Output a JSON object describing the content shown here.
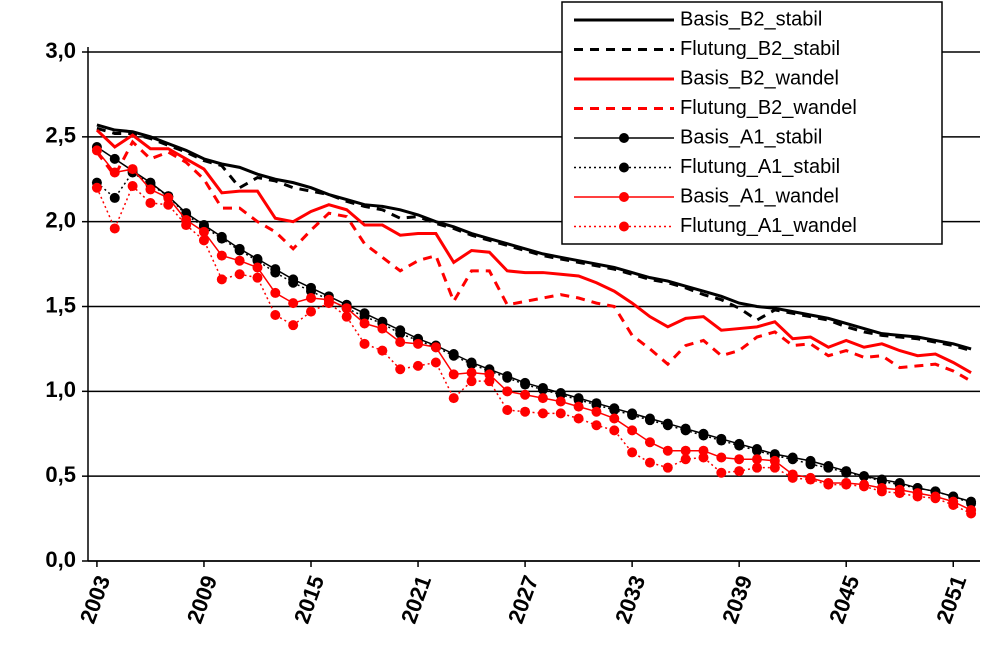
{
  "chart_data": {
    "type": "line",
    "x": [
      2003,
      2004,
      2005,
      2006,
      2007,
      2008,
      2009,
      2010,
      2011,
      2012,
      2013,
      2014,
      2015,
      2016,
      2017,
      2018,
      2019,
      2020,
      2021,
      2022,
      2023,
      2024,
      2025,
      2026,
      2027,
      2028,
      2029,
      2030,
      2031,
      2032,
      2033,
      2034,
      2035,
      2036,
      2037,
      2038,
      2039,
      2040,
      2041,
      2042,
      2043,
      2044,
      2045,
      2046,
      2047,
      2048,
      2049,
      2050,
      2051,
      2052
    ],
    "xlim": [
      2002.5,
      2052.5
    ],
    "xticks": [
      2003,
      2009,
      2015,
      2021,
      2027,
      2033,
      2039,
      2045,
      2051
    ],
    "ylim": [
      0,
      3
    ],
    "yticks": [
      {
        "value": 0,
        "label": "0,0"
      },
      {
        "value": 0.5,
        "label": "0,5"
      },
      {
        "value": 1,
        "label": "1,0"
      },
      {
        "value": 1.5,
        "label": "1,5"
      },
      {
        "value": 2,
        "label": "2,0"
      },
      {
        "value": 2.5,
        "label": "2,5"
      },
      {
        "value": 3,
        "label": "3,0"
      }
    ],
    "grid": true,
    "legend": "upper right",
    "series": [
      {
        "name": "Basis_B2_stabil",
        "color": "#000000",
        "line": "solid",
        "marker": false,
        "values": [
          2.57,
          2.54,
          2.53,
          2.5,
          2.46,
          2.42,
          2.37,
          2.34,
          2.32,
          2.28,
          2.25,
          2.23,
          2.2,
          2.16,
          2.13,
          2.1,
          2.09,
          2.07,
          2.04,
          2.0,
          1.97,
          1.93,
          1.9,
          1.87,
          1.84,
          1.81,
          1.79,
          1.77,
          1.75,
          1.73,
          1.7,
          1.67,
          1.65,
          1.62,
          1.59,
          1.56,
          1.52,
          1.5,
          1.49,
          1.47,
          1.45,
          1.43,
          1.4,
          1.37,
          1.34,
          1.33,
          1.32,
          1.3,
          1.28,
          1.25
        ]
      },
      {
        "name": "Flutung_B2_stabil",
        "color": "#000000",
        "line": "dashed",
        "marker": false,
        "values": [
          2.55,
          2.52,
          2.52,
          2.49,
          2.45,
          2.41,
          2.36,
          2.33,
          2.2,
          2.26,
          2.24,
          2.2,
          2.18,
          2.16,
          2.12,
          2.09,
          2.07,
          2.02,
          2.03,
          1.99,
          1.96,
          1.92,
          1.89,
          1.86,
          1.83,
          1.8,
          1.78,
          1.76,
          1.74,
          1.72,
          1.69,
          1.66,
          1.64,
          1.61,
          1.57,
          1.54,
          1.49,
          1.42,
          1.48,
          1.46,
          1.44,
          1.42,
          1.38,
          1.35,
          1.33,
          1.32,
          1.31,
          1.29,
          1.27,
          1.24
        ]
      },
      {
        "name": "Basis_B2_wandel",
        "color": "#ff0000",
        "line": "solid",
        "marker": false,
        "values": [
          2.54,
          2.44,
          2.51,
          2.43,
          2.43,
          2.37,
          2.31,
          2.17,
          2.18,
          2.18,
          2.02,
          2.0,
          2.06,
          2.1,
          2.07,
          1.98,
          1.98,
          1.92,
          1.93,
          1.93,
          1.76,
          1.83,
          1.82,
          1.71,
          1.7,
          1.7,
          1.69,
          1.68,
          1.64,
          1.59,
          1.52,
          1.44,
          1.38,
          1.43,
          1.44,
          1.36,
          1.37,
          1.38,
          1.41,
          1.31,
          1.32,
          1.26,
          1.3,
          1.26,
          1.28,
          1.24,
          1.21,
          1.22,
          1.17,
          1.11
        ]
      },
      {
        "name": "Flutung_B2_wandel",
        "color": "#ff0000",
        "line": "dashed",
        "marker": false,
        "values": [
          2.41,
          2.27,
          2.47,
          2.37,
          2.41,
          2.35,
          2.25,
          2.08,
          2.08,
          2.0,
          1.94,
          1.84,
          1.95,
          2.05,
          2.03,
          1.87,
          1.79,
          1.71,
          1.77,
          1.8,
          1.53,
          1.71,
          1.71,
          1.51,
          1.53,
          1.55,
          1.57,
          1.55,
          1.52,
          1.5,
          1.33,
          1.25,
          1.16,
          1.27,
          1.3,
          1.21,
          1.24,
          1.32,
          1.35,
          1.27,
          1.28,
          1.21,
          1.24,
          1.2,
          1.21,
          1.14,
          1.15,
          1.16,
          1.12,
          1.06
        ]
      },
      {
        "name": "Basis_A1_stabil",
        "color": "#000000",
        "line": "solid",
        "marker": true,
        "values": [
          2.44,
          2.37,
          2.3,
          2.23,
          2.15,
          2.05,
          1.98,
          1.91,
          1.84,
          1.78,
          1.72,
          1.66,
          1.61,
          1.56,
          1.51,
          1.46,
          1.41,
          1.36,
          1.31,
          1.27,
          1.22,
          1.17,
          1.13,
          1.09,
          1.05,
          1.02,
          0.99,
          0.96,
          0.93,
          0.9,
          0.87,
          0.84,
          0.81,
          0.78,
          0.75,
          0.72,
          0.69,
          0.66,
          0.63,
          0.61,
          0.59,
          0.56,
          0.53,
          0.5,
          0.48,
          0.46,
          0.43,
          0.41,
          0.38,
          0.35
        ]
      },
      {
        "name": "Flutung_A1_stabil",
        "color": "#000000",
        "line": "dotted",
        "marker": true,
        "values": [
          2.23,
          2.14,
          2.29,
          2.22,
          2.15,
          2.04,
          1.97,
          1.9,
          1.83,
          1.77,
          1.7,
          1.64,
          1.59,
          1.54,
          1.49,
          1.44,
          1.4,
          1.34,
          1.3,
          1.26,
          1.21,
          1.16,
          1.12,
          1.08,
          1.04,
          1.01,
          0.98,
          0.95,
          0.92,
          0.89,
          0.86,
          0.83,
          0.8,
          0.77,
          0.74,
          0.71,
          0.68,
          0.65,
          0.62,
          0.6,
          0.57,
          0.55,
          0.52,
          0.5,
          0.47,
          0.45,
          0.43,
          0.41,
          0.38,
          0.34
        ]
      },
      {
        "name": "Basis_A1_wandel",
        "color": "#ff0000",
        "line": "solid",
        "marker": true,
        "values": [
          2.42,
          2.29,
          2.31,
          2.19,
          2.14,
          2.01,
          1.94,
          1.8,
          1.77,
          1.73,
          1.58,
          1.52,
          1.55,
          1.54,
          1.49,
          1.4,
          1.37,
          1.29,
          1.28,
          1.26,
          1.1,
          1.11,
          1.1,
          1.0,
          0.98,
          0.96,
          0.94,
          0.91,
          0.88,
          0.84,
          0.77,
          0.7,
          0.65,
          0.65,
          0.65,
          0.61,
          0.6,
          0.6,
          0.59,
          0.51,
          0.49,
          0.46,
          0.46,
          0.45,
          0.43,
          0.42,
          0.4,
          0.38,
          0.35,
          0.3
        ]
      },
      {
        "name": "Flutung_A1_wandel",
        "color": "#ff0000",
        "line": "dotted",
        "marker": true,
        "values": [
          2.2,
          1.96,
          2.21,
          2.11,
          2.1,
          1.98,
          1.89,
          1.66,
          1.69,
          1.67,
          1.45,
          1.39,
          1.47,
          1.52,
          1.44,
          1.28,
          1.24,
          1.13,
          1.15,
          1.17,
          0.96,
          1.06,
          1.06,
          0.89,
          0.88,
          0.87,
          0.87,
          0.84,
          0.8,
          0.77,
          0.64,
          0.58,
          0.55,
          0.6,
          0.61,
          0.52,
          0.53,
          0.55,
          0.55,
          0.49,
          0.48,
          0.45,
          0.45,
          0.44,
          0.41,
          0.4,
          0.38,
          0.37,
          0.33,
          0.28
        ]
      }
    ]
  }
}
